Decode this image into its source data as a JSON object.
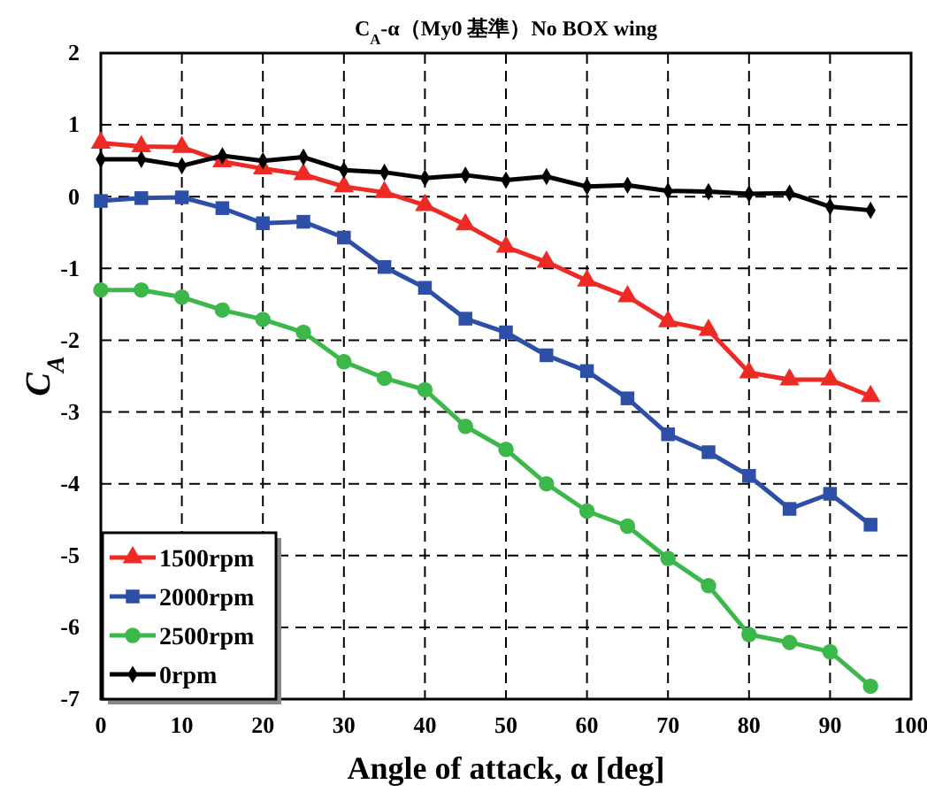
{
  "chart_data": {
    "type": "line",
    "title": "C$_{A}$-α（My0 基準）No BOX wing",
    "xlabel": "Angle of attack, α [deg]",
    "ylabel": "C$_{A}$",
    "x": [
      0,
      5,
      10,
      15,
      20,
      25,
      30,
      35,
      40,
      45,
      50,
      55,
      60,
      65,
      70,
      75,
      80,
      85,
      90,
      95
    ],
    "xlim": [
      0,
      100
    ],
    "xticks": [
      0,
      10,
      20,
      30,
      40,
      50,
      60,
      70,
      80,
      90,
      100
    ],
    "ylim": [
      -7,
      2
    ],
    "yticks": [
      -7,
      -6,
      -5,
      -4,
      -3,
      -2,
      -1,
      0,
      1,
      2
    ],
    "grid": true,
    "legend": "bottom left",
    "line_style": "solid",
    "series": [
      {
        "name": "1500rpm",
        "color": "#ee2a24",
        "marker": "triangle",
        "values": [
          0.75,
          0.7,
          0.69,
          0.49,
          0.39,
          0.31,
          0.14,
          0.06,
          -0.12,
          -0.39,
          -0.7,
          -0.91,
          -1.17,
          -1.39,
          -1.74,
          -1.86,
          -2.45,
          -2.55,
          -2.55,
          -2.78
        ]
      },
      {
        "name": "2000rpm",
        "color": "#2e4fa8",
        "marker": "square",
        "values": [
          -0.06,
          -0.02,
          -0.01,
          -0.16,
          -0.37,
          -0.35,
          -0.57,
          -0.98,
          -1.27,
          -1.7,
          -1.89,
          -2.21,
          -2.43,
          -2.81,
          -3.31,
          -3.56,
          -3.89,
          -4.35,
          -4.14,
          -4.57
        ]
      },
      {
        "name": "2500rpm",
        "color": "#3cb84a",
        "marker": "circle",
        "values": [
          -1.3,
          -1.3,
          -1.4,
          -1.58,
          -1.71,
          -1.89,
          -2.3,
          -2.53,
          -2.69,
          -3.2,
          -3.52,
          -4.0,
          -4.38,
          -4.59,
          -5.04,
          -5.42,
          -6.1,
          -6.21,
          -6.34,
          -6.82
        ]
      },
      {
        "name": "0rpm",
        "color": "#000000",
        "marker": "diamond",
        "values": [
          0.52,
          0.52,
          0.43,
          0.57,
          0.5,
          0.55,
          0.37,
          0.34,
          0.26,
          0.3,
          0.23,
          0.28,
          0.14,
          0.16,
          0.08,
          0.07,
          0.04,
          0.05,
          -0.14,
          -0.19
        ]
      }
    ]
  }
}
